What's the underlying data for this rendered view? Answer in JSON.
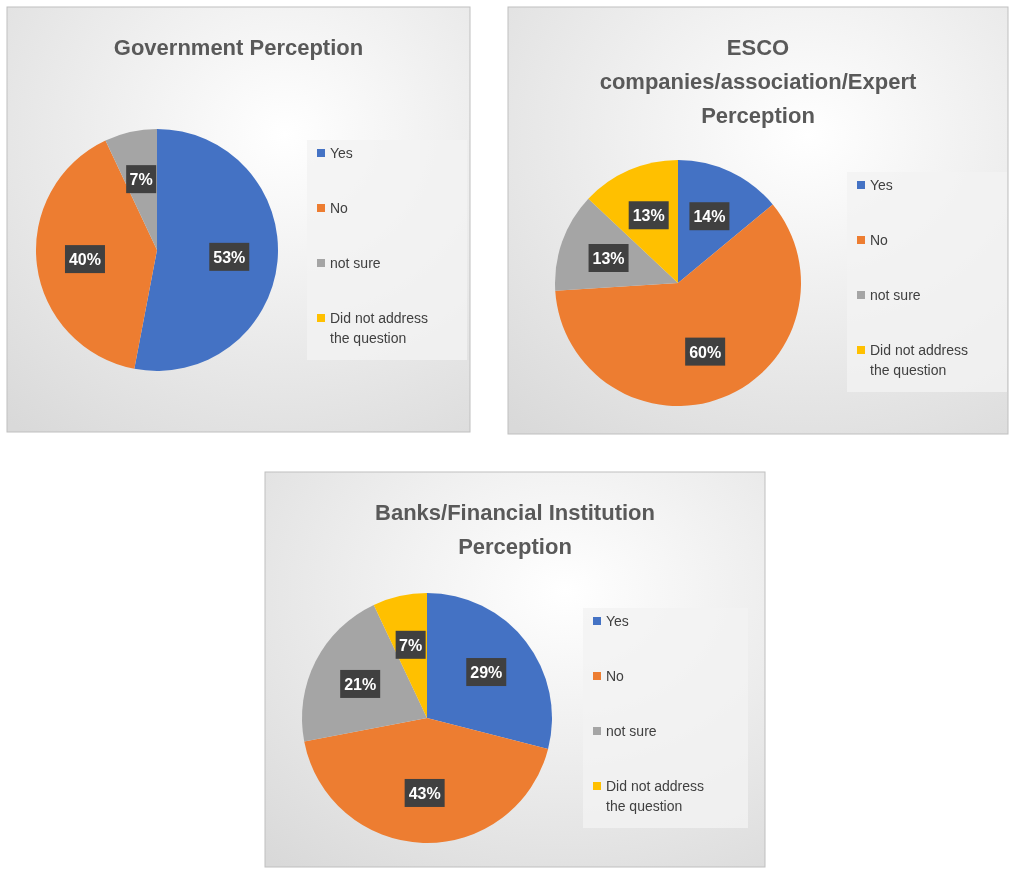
{
  "chart_data": [
    {
      "type": "pie",
      "title": "Government Perception",
      "categories": [
        "Yes",
        "No",
        "not sure",
        "Did not address the question"
      ],
      "values": [
        53,
        40,
        7,
        0
      ],
      "colors": [
        "#4472c4",
        "#ed7d31",
        "#a5a5a5",
        "#ffc000"
      ],
      "value_labels": [
        "53%",
        "40%",
        "7%",
        null
      ],
      "legend": "right"
    },
    {
      "type": "pie",
      "title": "ESCO\ncompanies/association/Expert\nPerception",
      "categories": [
        "Yes",
        "No",
        "not sure",
        "Did not address the question"
      ],
      "values": [
        14,
        60,
        13,
        13
      ],
      "colors": [
        "#4472c4",
        "#ed7d31",
        "#a5a5a5",
        "#ffc000"
      ],
      "value_labels": [
        "14%",
        "60%",
        "13%",
        "13%"
      ],
      "legend": "right"
    },
    {
      "type": "pie",
      "title": "Banks/Financial Institution\nPerception",
      "categories": [
        "Yes",
        "No",
        "not sure",
        "Did not address the question"
      ],
      "values": [
        29,
        43,
        21,
        7
      ],
      "colors": [
        "#4472c4",
        "#ed7d31",
        "#a5a5a5",
        "#ffc000"
      ],
      "value_labels": [
        "29%",
        "43%",
        "21%",
        "7%"
      ],
      "legend": "right"
    }
  ]
}
